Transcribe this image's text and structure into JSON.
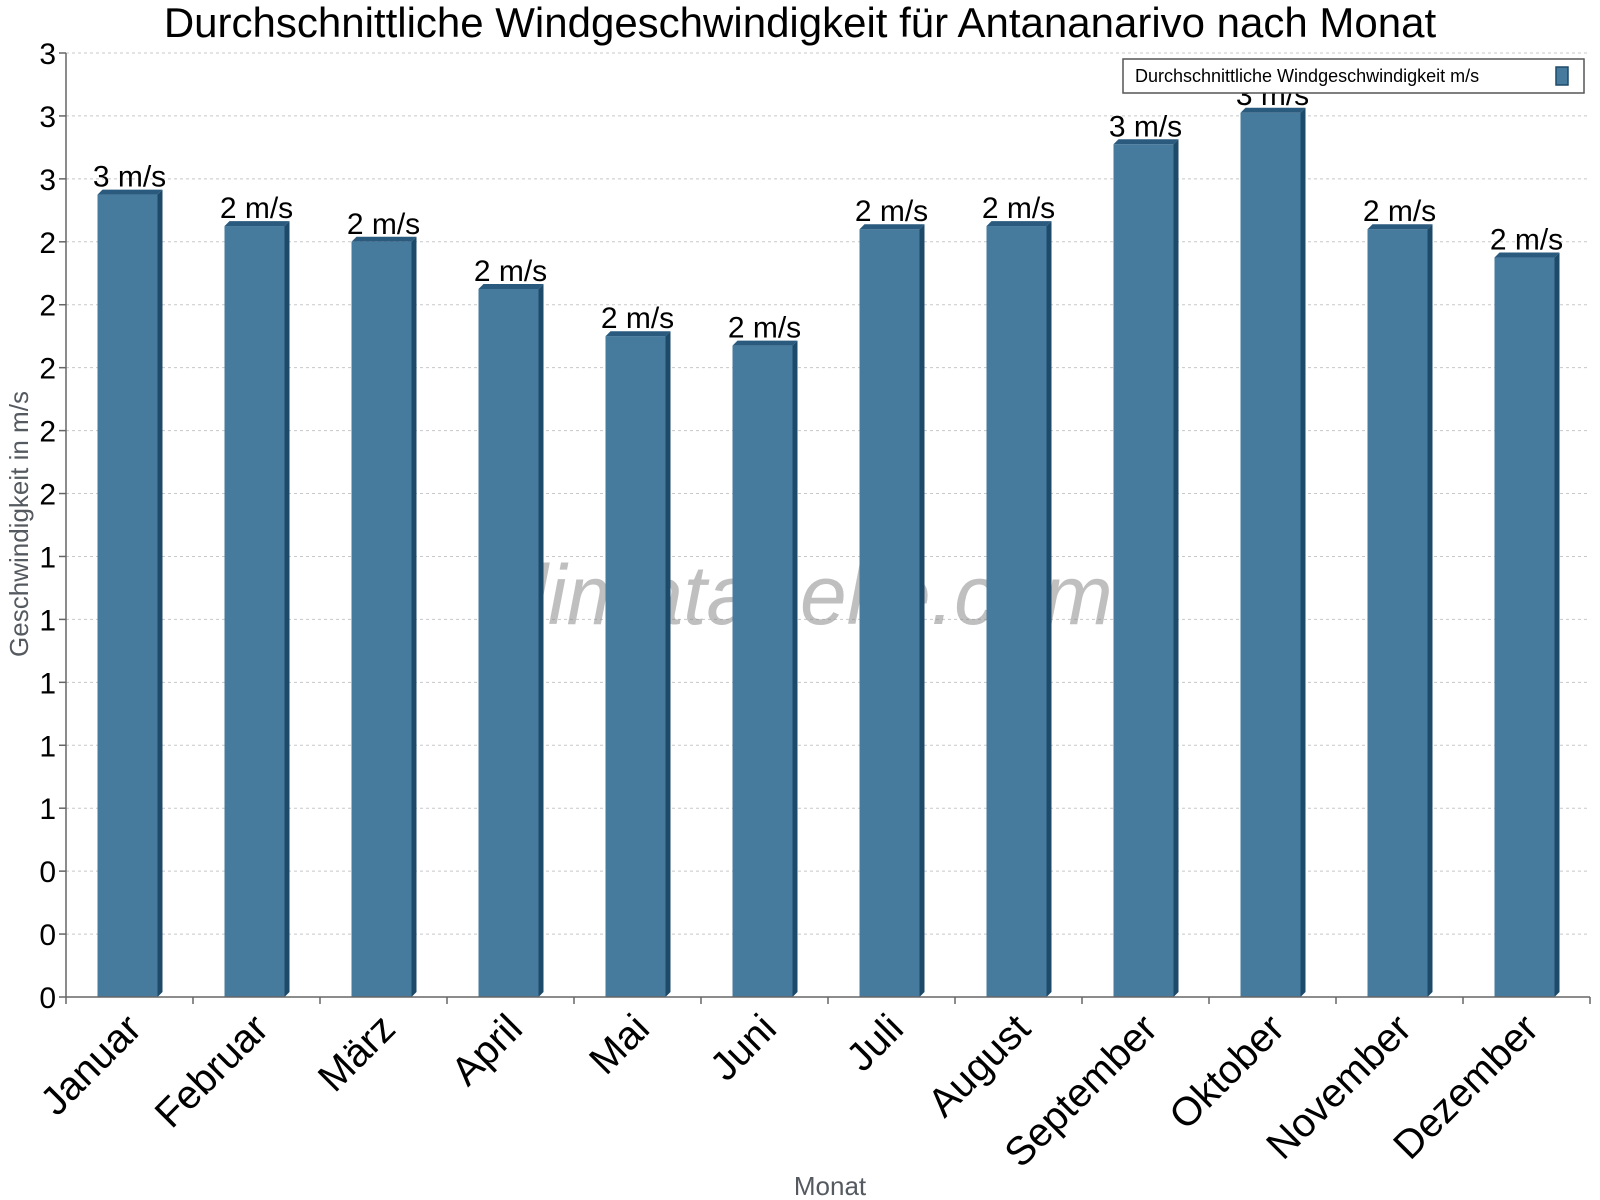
{
  "chart_data": {
    "type": "bar",
    "title": "Durchschnittliche Windgeschwindigkeit für Antananarivo nach Monat",
    "xlabel": "Monat",
    "ylabel": "Geschwindigkeit in m/s",
    "categories": [
      "Januar",
      "Februar",
      "März",
      "April",
      "Mai",
      "Juni",
      "Juli",
      "August",
      "September",
      "Oktober",
      "November",
      "Dezember"
    ],
    "series": [
      {
        "name": "Durchschnittliche Windgeschwindigkeit m/s",
        "values": [
          2.55,
          2.45,
          2.4,
          2.25,
          2.1,
          2.07,
          2.44,
          2.45,
          2.71,
          2.81,
          2.44,
          2.35
        ],
        "labels": [
          "3 m/s",
          "2 m/s",
          "2 m/s",
          "2 m/s",
          "2 m/s",
          "2 m/s",
          "2 m/s",
          "2 m/s",
          "3 m/s",
          "3 m/s",
          "2 m/s",
          "2 m/s"
        ]
      }
    ],
    "y_tick_values": [
      0,
      0.2,
      0.4,
      0.6,
      0.8,
      1.0,
      1.2,
      1.4,
      1.6,
      1.8,
      2.0,
      2.2,
      2.4,
      2.6,
      2.8,
      3.0
    ],
    "y_tick_labels": [
      "0",
      "0",
      "0",
      "1",
      "1",
      "1",
      "1",
      "1",
      "2",
      "2",
      "2",
      "2",
      "2",
      "3",
      "3",
      "3"
    ],
    "ylim": [
      0,
      3.0
    ],
    "grid": true,
    "legend_position": "top-right",
    "watermark": "klimatabelle.com",
    "colors": {
      "bar": "#467b9e",
      "bar_side": "#1e4a6a",
      "bar_top": "#2a5a7e",
      "grid": "#c8c8c8",
      "axis": "#666666"
    }
  }
}
